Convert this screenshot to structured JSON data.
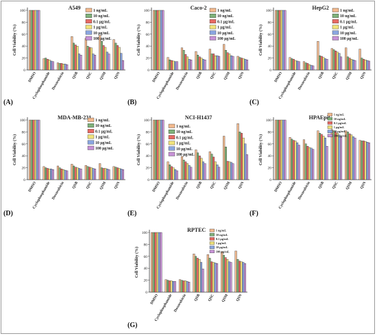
{
  "figure": {
    "y_axis_label": "Cell Viability (%)",
    "legend_labels": [
      "1 ng/mL",
      "10 ng/mL",
      "0.1 μg/mL",
      "1 μg/mL",
      "10 μg/mL",
      "100 μg/mL"
    ],
    "x_tick_labels": [
      "DMSO",
      "Cyclophosphamide",
      "Doxorubicin",
      "QSB",
      "QSC",
      "QSM",
      "QSN"
    ],
    "series_colors": [
      "#f2b98e",
      "#7fb27a",
      "#e86a64",
      "#f0e27a",
      "#8aa6e0",
      "#c792d6"
    ],
    "bar_edge_color": "#222222"
  },
  "chart_data": [
    {
      "type": "bar",
      "panel": "(A)",
      "title": "A549",
      "ylabel": "Cell Viability (%)",
      "ylim": [
        0,
        100
      ],
      "yticks": [
        0,
        20,
        40,
        60,
        80,
        100
      ],
      "categories": [
        "DMSO",
        "Cyclophosphamide",
        "Doxorubicin",
        "QSB",
        "QSC",
        "QSM",
        "QSN"
      ],
      "series": [
        {
          "name": "1 ng/mL",
          "values": [
            100,
            19,
            12,
            56,
            53,
            58,
            51
          ]
        },
        {
          "name": "10 ng/mL",
          "values": [
            100,
            20,
            11,
            45,
            40,
            48,
            45
          ]
        },
        {
          "name": "0.1 μg/mL",
          "values": [
            100,
            18,
            11,
            42,
            38,
            41,
            41
          ]
        },
        {
          "name": "1 μg/mL",
          "values": [
            100,
            17,
            10,
            40,
            37,
            38,
            38
          ]
        },
        {
          "name": "10 μg/mL",
          "values": [
            100,
            15,
            10,
            27,
            27,
            30,
            28
          ]
        },
        {
          "name": "100 μg/mL",
          "values": [
            100,
            14,
            9,
            25,
            25,
            27,
            16
          ]
        }
      ]
    },
    {
      "type": "bar",
      "panel": "(B)",
      "title": "Caco-2",
      "ylabel": "Cell Viability (%)",
      "ylim": [
        0,
        100
      ],
      "yticks": [
        0,
        20,
        40,
        60,
        80,
        100
      ],
      "categories": [
        "DMSO",
        "Cyclophosphamide",
        "Doxorubicin",
        "QSB",
        "QSC",
        "QSM",
        "QSN"
      ],
      "series": [
        {
          "name": "1 ng/mL",
          "values": [
            100,
            21,
            37,
            31,
            35,
            43,
            23
          ]
        },
        {
          "name": "10 ng/mL",
          "values": [
            100,
            17,
            33,
            25,
            27,
            33,
            21
          ]
        },
        {
          "name": "0.1 μg/mL",
          "values": [
            100,
            16,
            26,
            22,
            27,
            29,
            20
          ]
        },
        {
          "name": "1 μg/mL",
          "values": [
            100,
            15,
            22,
            20,
            24,
            27,
            19
          ]
        },
        {
          "name": "10 μg/mL",
          "values": [
            100,
            14,
            18,
            18,
            24,
            24,
            18
          ]
        },
        {
          "name": "100 μg/mL",
          "values": [
            100,
            14,
            17,
            17,
            23,
            23,
            17
          ]
        }
      ]
    },
    {
      "type": "bar",
      "panel": "(C)",
      "title": "HepG2",
      "ylabel": "Cell Viability (%)",
      "ylim": [
        0,
        100
      ],
      "yticks": [
        0,
        20,
        40,
        60,
        80,
        100
      ],
      "categories": [
        "DMSO",
        "Cyclophosphamide",
        "Doxorubicin",
        "QSB",
        "QSC",
        "QSM",
        "QSN"
      ],
      "series": [
        {
          "name": "1 ng/mL",
          "values": [
            100,
            21,
            14,
            48,
            36,
            37,
            35
          ]
        },
        {
          "name": "10 ng/mL",
          "values": [
            100,
            19,
            12,
            24,
            34,
            22,
            20
          ]
        },
        {
          "name": "0.1 μg/mL",
          "values": [
            100,
            18,
            11,
            23,
            32,
            20,
            18
          ]
        },
        {
          "name": "1 μg/mL",
          "values": [
            100,
            16,
            9,
            21,
            30,
            18,
            17
          ]
        },
        {
          "name": "10 μg/mL",
          "values": [
            100,
            15,
            8,
            19,
            28,
            17,
            16
          ]
        },
        {
          "name": "100 μg/mL",
          "values": [
            100,
            14,
            7,
            18,
            22,
            16,
            15
          ]
        }
      ]
    },
    {
      "type": "bar",
      "panel": "(D)",
      "title": "MDA-MB-231",
      "ylabel": "Cell Viability (%)",
      "ylim": [
        0,
        100
      ],
      "yticks": [
        0,
        20,
        40,
        60,
        80,
        100
      ],
      "categories": [
        "DMSO",
        "Cyclophosphamide",
        "Doxorubicin",
        "QSB",
        "QSC",
        "QSM",
        "QSN"
      ],
      "series": [
        {
          "name": "1 ng/mL",
          "values": [
            100,
            22,
            23,
            26,
            24,
            27,
            22
          ]
        },
        {
          "name": "10 ng/mL",
          "values": [
            100,
            20,
            20,
            23,
            22,
            20,
            21
          ]
        },
        {
          "name": "0.1 μg/mL",
          "values": [
            100,
            19,
            18,
            21,
            21,
            19,
            20
          ]
        },
        {
          "name": "1 μg/mL",
          "values": [
            100,
            18,
            17,
            20,
            20,
            19,
            19
          ]
        },
        {
          "name": "10 μg/mL",
          "values": [
            100,
            18,
            16,
            19,
            19,
            18,
            18
          ]
        },
        {
          "name": "100 μg/mL",
          "values": [
            100,
            17,
            15,
            18,
            18,
            17,
            17
          ]
        }
      ]
    },
    {
      "type": "bar",
      "panel": "(E)",
      "title": "NCI-H1437",
      "ylabel": "Cell Viability (%)",
      "ylim": [
        0,
        100
      ],
      "yticks": [
        0,
        20,
        40,
        60,
        80,
        100
      ],
      "categories": [
        "DMSO",
        "Cyclophosphamide",
        "Doxorubicin",
        "QSB",
        "QSC",
        "QSM",
        "QSN"
      ],
      "series": [
        {
          "name": "1 ng/mL",
          "values": [
            100,
            30,
            39,
            50,
            47,
            73,
            94
          ]
        },
        {
          "name": "10 ng/mL",
          "values": [
            100,
            25,
            33,
            45,
            43,
            55,
            80
          ]
        },
        {
          "name": "0.1 μg/mL",
          "values": [
            100,
            22,
            30,
            40,
            38,
            31,
            78
          ]
        },
        {
          "name": "1 μg/mL",
          "values": [
            100,
            20,
            27,
            36,
            30,
            30,
            70
          ]
        },
        {
          "name": "10 μg/mL",
          "values": [
            100,
            17,
            24,
            30,
            25,
            29,
            60
          ]
        },
        {
          "name": "100 μg/mL",
          "values": [
            100,
            15,
            21,
            27,
            21,
            27,
            42
          ]
        }
      ]
    },
    {
      "type": "bar",
      "panel": "(F)",
      "title": "HPAEpiC",
      "ylabel": "Cell Viability (%)",
      "ylim": [
        0,
        100
      ],
      "yticks": [
        0,
        20,
        40,
        60,
        80,
        100
      ],
      "categories": [
        "DMSO",
        "Cyclophosphamide",
        "Doxorubicin",
        "QSB",
        "QSC",
        "QSM",
        "QSN"
      ],
      "series": [
        {
          "name": "1 ng/mL",
          "values": [
            100,
            71,
            67,
            82,
            84,
            82,
            66
          ]
        },
        {
          "name": "10 ng/mL",
          "values": [
            100,
            68,
            60,
            78,
            82,
            80,
            65
          ]
        },
        {
          "name": "0.1 μg/mL",
          "values": [
            100,
            66,
            56,
            76,
            80,
            77,
            65
          ]
        },
        {
          "name": "1 μg/mL",
          "values": [
            100,
            65,
            54,
            73,
            78,
            75,
            64
          ]
        },
        {
          "name": "10 μg/mL",
          "values": [
            100,
            62,
            53,
            70,
            75,
            72,
            63
          ]
        },
        {
          "name": "100 μg/mL",
          "values": [
            100,
            58,
            51,
            56,
            72,
            70,
            62
          ]
        }
      ]
    },
    {
      "type": "bar",
      "panel": "(G)",
      "title": "RPTEC",
      "ylabel": "Cell Viability (%)",
      "ylim": [
        0,
        100
      ],
      "yticks": [
        0,
        20,
        40,
        60,
        80,
        100
      ],
      "categories": [
        "DMSO",
        "Cyclophosphamide",
        "Doxorubicin",
        "QSB",
        "QSC",
        "QSM",
        "QSN"
      ],
      "series": [
        {
          "name": "1 ng/mL",
          "values": [
            100,
            21,
            21,
            64,
            63,
            68,
            69
          ]
        },
        {
          "name": "10 ng/mL",
          "values": [
            100,
            20,
            20,
            60,
            57,
            62,
            55
          ]
        },
        {
          "name": "0.1 μg/mL",
          "values": [
            100,
            19,
            19,
            57,
            51,
            58,
            52
          ]
        },
        {
          "name": "1 μg/mL",
          "values": [
            100,
            19,
            19,
            55,
            50,
            55,
            51
          ]
        },
        {
          "name": "10 μg/mL",
          "values": [
            100,
            18,
            18,
            50,
            49,
            51,
            50
          ]
        },
        {
          "name": "100 μg/mL",
          "values": [
            100,
            18,
            17,
            39,
            48,
            50,
            48
          ]
        }
      ]
    }
  ]
}
